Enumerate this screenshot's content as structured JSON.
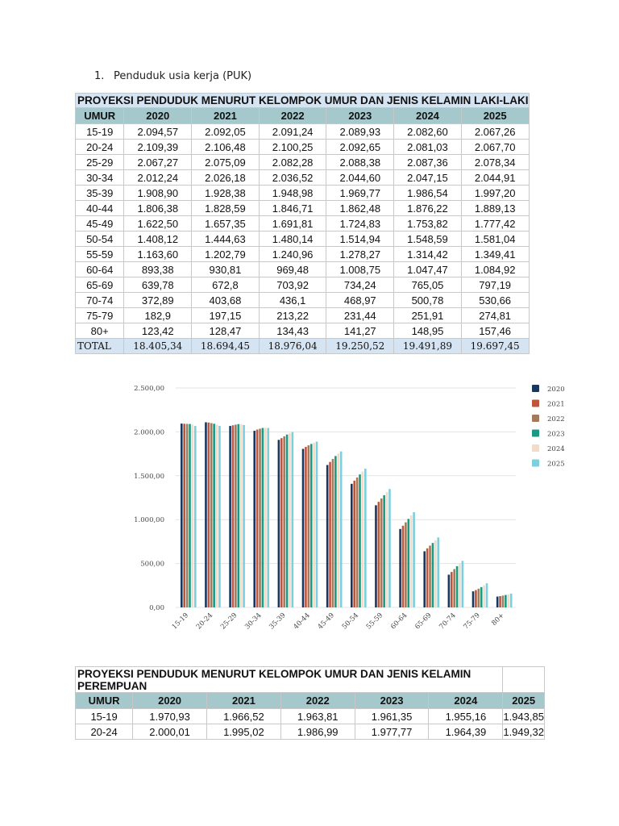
{
  "heading": {
    "number": "1.",
    "text": "Penduduk usia kerja (PUK)"
  },
  "table_male": {
    "title": "PROYEKSI PENDUDUK MENURUT KELOMPOK UMUR DAN JENIS KELAMIN LAKI-LAKI",
    "columns": [
      "UMUR",
      "2020",
      "2021",
      "2022",
      "2023",
      "2024",
      "2025"
    ],
    "rows": [
      [
        "15-19",
        "2.094,57",
        "2.092,05",
        "2.091,24",
        "2.089,93",
        "2.082,60",
        "2.067,26"
      ],
      [
        "20-24",
        "2.109,39",
        "2.106,48",
        "2.100,25",
        "2.092,65",
        "2.081,03",
        "2.067,70"
      ],
      [
        "25-29",
        "2.067,27",
        "2.075,09",
        "2.082,28",
        "2.088,38",
        "2.087,36",
        "2.078,34"
      ],
      [
        "30-34",
        "2.012,24",
        "2.026,18",
        "2.036,52",
        "2.044,60",
        "2.047,15",
        "2.044,91"
      ],
      [
        "35-39",
        "1.908,90",
        "1.928,38",
        "1.948,98",
        "1.969,77",
        "1.986,54",
        "1.997,20"
      ],
      [
        "40-44",
        "1.806,38",
        "1.828,59",
        "1.846,71",
        "1.862,48",
        "1.876,22",
        "1.889,13"
      ],
      [
        "45-49",
        "1.622,50",
        "1.657,35",
        "1.691,81",
        "1.724,83",
        "1.753,82",
        "1.777,42"
      ],
      [
        "50-54",
        "1.408,12",
        "1.444,63",
        "1.480,14",
        "1.514,94",
        "1.548,59",
        "1.581,04"
      ],
      [
        "55-59",
        "1.163,60",
        "1.202,79",
        "1.240,96",
        "1.278,27",
        "1.314,42",
        "1.349,41"
      ],
      [
        "60-64",
        "893,38",
        "930,81",
        "969,48",
        "1.008,75",
        "1.047,47",
        "1.084,92"
      ],
      [
        "65-69",
        "639,78",
        "672,8",
        "703,92",
        "734,24",
        "765,05",
        "797,19"
      ],
      [
        "70-74",
        "372,89",
        "403,68",
        "436,1",
        "468,97",
        "500,78",
        "530,66"
      ],
      [
        "75-79",
        "182,9",
        "197,15",
        "213,22",
        "231,44",
        "251,91",
        "274,81"
      ],
      [
        "80+",
        "123,42",
        "128,47",
        "134,43",
        "141,27",
        "148,95",
        "157,46"
      ]
    ],
    "total": [
      "TOTAL",
      "18.405,34",
      "18.694,45",
      "18.976,04",
      "19.250,52",
      "19.491,89",
      "19.697,45"
    ]
  },
  "chart_data": {
    "type": "bar",
    "categories": [
      "15-19",
      "20-24",
      "25-29",
      "30-34",
      "35-39",
      "40-44",
      "45-49",
      "50-54",
      "55-59",
      "60-64",
      "65-69",
      "70-74",
      "75-79",
      "80+"
    ],
    "ylim": [
      0,
      2500
    ],
    "yticks": [
      "0,00",
      "500,00",
      "1.000,00",
      "1.500,00",
      "2.000,00",
      "2.500,00"
    ],
    "grid": true,
    "legend_position": "right",
    "series": [
      {
        "name": "2020",
        "color": "#17375e",
        "values": [
          2094.57,
          2109.39,
          2067.27,
          2012.24,
          1908.9,
          1806.38,
          1622.5,
          1408.12,
          1163.6,
          893.38,
          639.78,
          372.89,
          182.9,
          123.42
        ]
      },
      {
        "name": "2021",
        "color": "#c0553e",
        "values": [
          2092.05,
          2106.48,
          2075.09,
          2026.18,
          1928.38,
          1828.59,
          1657.35,
          1444.63,
          1202.79,
          930.81,
          672.8,
          403.68,
          197.15,
          128.47
        ]
      },
      {
        "name": "2022",
        "color": "#a57a5a",
        "values": [
          2091.24,
          2100.25,
          2082.28,
          2036.52,
          1948.98,
          1846.71,
          1691.81,
          1480.14,
          1240.96,
          969.48,
          703.92,
          436.1,
          213.22,
          134.43
        ]
      },
      {
        "name": "2023",
        "color": "#1a9a83",
        "values": [
          2089.93,
          2092.65,
          2088.38,
          2044.6,
          1969.77,
          1862.48,
          1724.83,
          1514.94,
          1278.27,
          1008.75,
          734.24,
          468.97,
          231.44,
          141.27
        ]
      },
      {
        "name": "2024",
        "color": "#f0dcc8",
        "values": [
          2082.6,
          2081.03,
          2087.36,
          2047.15,
          1986.54,
          1876.22,
          1753.82,
          1548.59,
          1314.42,
          1047.47,
          765.05,
          500.78,
          251.91,
          148.95
        ]
      },
      {
        "name": "2025",
        "color": "#7ccfdc",
        "values": [
          2067.26,
          2067.7,
          2078.34,
          2044.91,
          1997.2,
          1889.13,
          1777.42,
          1581.04,
          1349.41,
          1084.92,
          797.19,
          530.66,
          274.81,
          157.46
        ]
      }
    ]
  },
  "table_female": {
    "title": "PROYEKSI PENDUDUK MENURUT KELOMPOK UMUR DAN JENIS KELAMIN PEREMPUAN",
    "columns": [
      "UMUR",
      "2020",
      "2021",
      "2022",
      "2023",
      "2024",
      "2025"
    ],
    "rows": [
      [
        "15-19",
        "1.970,93",
        "1.966,52",
        "1.963,81",
        "1.961,35",
        "1.955,16",
        "1.943,85"
      ],
      [
        "20-24",
        "2.000,01",
        "1.995,02",
        "1.986,99",
        "1.977,77",
        "1.964,39",
        "1.949,32"
      ]
    ]
  }
}
